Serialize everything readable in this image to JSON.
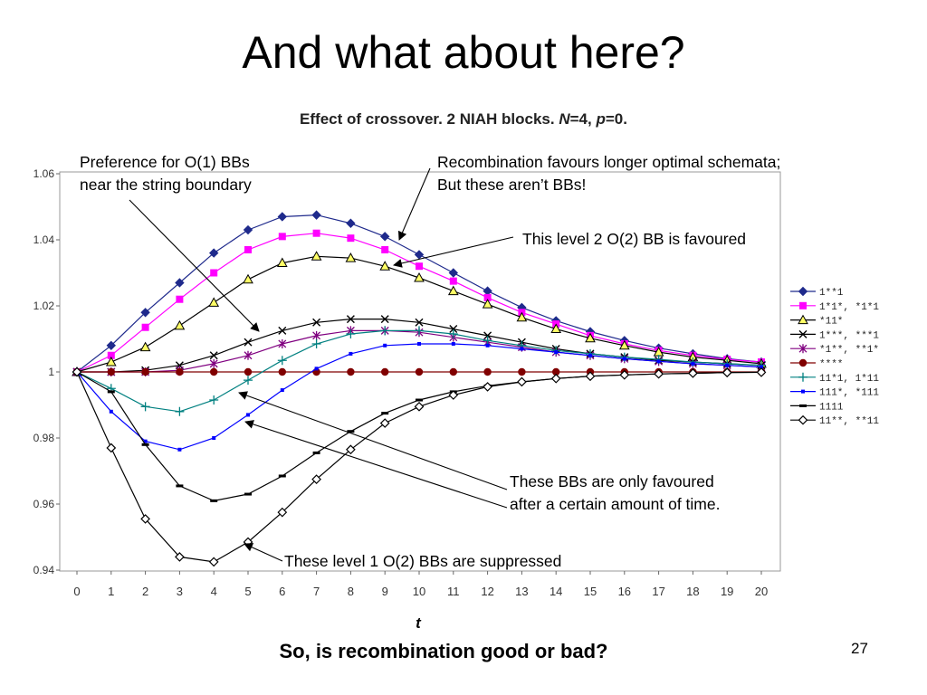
{
  "slide": {
    "title": "And what about here?",
    "chart_title": {
      "prefix": "Effect of crossover. 2 NIAH blocks. ",
      "n_sym": "N",
      "n_val": "=4, ",
      "p_sym": "p",
      "p_val": "=0."
    },
    "question": "So, is recombination good or bad?",
    "page_number": "27"
  },
  "annotations": {
    "a1_line1": "Preference for O(1) BBs",
    "a1_line2": "near the string boundary",
    "a2_line1": "Recombination favours longer optimal schemata;",
    "a2_line2": "But these aren’t BBs!",
    "a3": "This level 2 O(2) BB is favoured",
    "a4_line1": "These BBs are only favoured",
    "a4_line2": "after a certain amount of time.",
    "a5": "These level 1 O(2) BBs are suppressed"
  },
  "chart_data": {
    "type": "line",
    "title": "Effect of crossover. 2 NIAH blocks. N=4, p=0.",
    "xlabel": "t",
    "ylabel": "",
    "x": [
      0,
      1,
      2,
      3,
      4,
      5,
      6,
      7,
      8,
      9,
      10,
      11,
      12,
      13,
      14,
      15,
      16,
      17,
      18,
      19,
      20
    ],
    "xlim": [
      0,
      20
    ],
    "ylim": [
      0.94,
      1.06
    ],
    "yticks": [
      "1.06",
      "1.04",
      "1.02",
      "1",
      "0.98",
      "0.96",
      "0.94"
    ],
    "ytick_values": [
      1.06,
      1.04,
      1.02,
      1.0,
      0.98,
      0.96,
      0.94
    ],
    "grid": false,
    "legend_position": "right",
    "series": [
      {
        "name": "1**1",
        "color": "#1f2a8c",
        "marker": "diamond",
        "values": [
          1.0,
          1.008,
          1.018,
          1.027,
          1.036,
          1.043,
          1.047,
          1.0475,
          1.045,
          1.041,
          1.0355,
          1.03,
          1.0245,
          1.0195,
          1.0155,
          1.0122,
          1.0095,
          1.0072,
          1.0055,
          1.004,
          1.003
        ]
      },
      {
        "name": "1*1*, *1*1",
        "color": "#ff00ff",
        "marker": "square",
        "values": [
          1.0,
          1.005,
          1.0135,
          1.022,
          1.03,
          1.037,
          1.041,
          1.042,
          1.0405,
          1.037,
          1.032,
          1.0275,
          1.0225,
          1.018,
          1.0145,
          1.011,
          1.0085,
          1.0065,
          1.005,
          1.0038,
          1.003
        ]
      },
      {
        "name": "*11*",
        "color": "#000000",
        "marker": "triangle",
        "values": [
          1.0,
          1.003,
          1.0075,
          1.014,
          1.021,
          1.028,
          1.033,
          1.035,
          1.0345,
          1.032,
          1.0285,
          1.0245,
          1.0205,
          1.0165,
          1.013,
          1.0102,
          1.008,
          1.006,
          1.0045,
          1.0035,
          1.0025
        ]
      },
      {
        "name": "1***, ***1",
        "color": "#000000",
        "marker": "x",
        "values": [
          1.0,
          1.0,
          1.0005,
          1.002,
          1.005,
          1.009,
          1.0125,
          1.015,
          1.016,
          1.016,
          1.015,
          1.013,
          1.011,
          1.009,
          1.007,
          1.0055,
          1.0045,
          1.0035,
          1.003,
          1.0025,
          1.002
        ]
      },
      {
        "name": "*1**, **1*",
        "color": "#800080",
        "marker": "star",
        "values": [
          1.0,
          1.0,
          1.0,
          1.0005,
          1.0025,
          1.005,
          1.0085,
          1.011,
          1.0125,
          1.0125,
          1.012,
          1.0105,
          1.009,
          1.0075,
          1.006,
          1.005,
          1.004,
          1.0032,
          1.0025,
          1.002,
          1.0015
        ]
      },
      {
        "name": "****",
        "color": "#800000",
        "marker": "circle",
        "values": [
          1.0,
          1.0,
          1.0,
          1.0,
          1.0,
          1.0,
          1.0,
          1.0,
          1.0,
          1.0,
          1.0,
          1.0,
          1.0,
          1.0,
          1.0,
          1.0,
          1.0,
          1.0,
          1.0,
          1.0,
          1.0
        ]
      },
      {
        "name": "11*1, 1*11",
        "color": "#008080",
        "marker": "plus",
        "values": [
          1.0,
          0.995,
          0.9895,
          0.988,
          0.9915,
          0.9975,
          1.0035,
          1.0085,
          1.0115,
          1.0125,
          1.0125,
          1.0115,
          1.0095,
          1.008,
          1.0065,
          1.0055,
          1.0045,
          1.0038,
          1.003,
          1.0025,
          1.002
        ]
      },
      {
        "name": "111*, *111",
        "color": "#0000ff",
        "marker": "dot",
        "values": [
          1.0,
          0.988,
          0.979,
          0.9765,
          0.98,
          0.987,
          0.9945,
          1.001,
          1.0055,
          1.008,
          1.0085,
          1.0085,
          1.008,
          1.007,
          1.006,
          1.005,
          1.004,
          1.0032,
          1.0025,
          1.002,
          1.0015
        ]
      },
      {
        "name": "1111",
        "color": "#000000",
        "marker": "dash",
        "values": [
          1.0,
          0.994,
          0.978,
          0.9655,
          0.961,
          0.963,
          0.9685,
          0.9755,
          0.982,
          0.9875,
          0.9915,
          0.994,
          0.9958,
          0.997,
          0.998,
          0.9987,
          0.9991,
          0.9994,
          0.9996,
          0.9998,
          0.9999
        ]
      },
      {
        "name": "11**, **11",
        "color": "#000000",
        "marker": "open-diamond",
        "values": [
          1.0,
          0.977,
          0.9555,
          0.944,
          0.9425,
          0.9485,
          0.9575,
          0.9675,
          0.9765,
          0.9845,
          0.9895,
          0.993,
          0.9955,
          0.997,
          0.998,
          0.9987,
          0.9991,
          0.9994,
          0.9996,
          0.9998,
          0.9999
        ]
      }
    ]
  }
}
